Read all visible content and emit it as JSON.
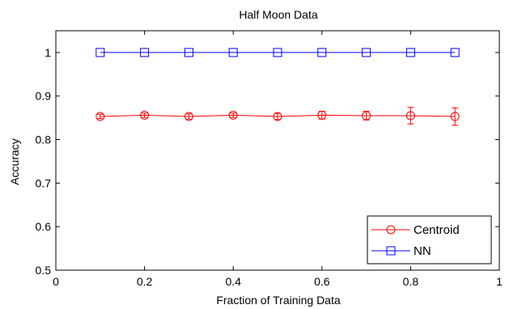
{
  "chart_data": {
    "type": "line",
    "title": "Half Moon Data",
    "xlabel": "Fraction of Training Data",
    "ylabel": "Accuracy",
    "xlim": [
      0,
      1
    ],
    "ylim": [
      0.5,
      1.05
    ],
    "xticks": [
      0,
      0.2,
      0.4,
      0.6,
      0.8,
      1
    ],
    "xtick_labels": [
      "0",
      "0.2",
      "0.4",
      "0.6",
      "0.8",
      "1"
    ],
    "yticks": [
      0.5,
      0.6,
      0.7,
      0.8,
      0.9,
      1
    ],
    "ytick_labels": [
      "0.5",
      "0.6",
      "0.7",
      "0.8",
      "0.9",
      "1"
    ],
    "grid": false,
    "legend_position": "bottom-right",
    "x": [
      0.1,
      0.2,
      0.3,
      0.4,
      0.5,
      0.6,
      0.7,
      0.8,
      0.9
    ],
    "series": [
      {
        "name": "Centroid",
        "color": "#ff0000",
        "marker": "circle",
        "values": [
          0.853,
          0.856,
          0.853,
          0.856,
          0.853,
          0.856,
          0.855,
          0.855,
          0.853
        ],
        "error": [
          0.005,
          0.005,
          0.006,
          0.005,
          0.007,
          0.009,
          0.01,
          0.019,
          0.02
        ]
      },
      {
        "name": "NN",
        "color": "#0000ff",
        "marker": "square",
        "values": [
          1,
          1,
          1,
          1,
          1,
          1,
          1,
          1,
          1
        ],
        "error": [
          0,
          0,
          0,
          0,
          0,
          0,
          0,
          0,
          0
        ]
      }
    ]
  }
}
